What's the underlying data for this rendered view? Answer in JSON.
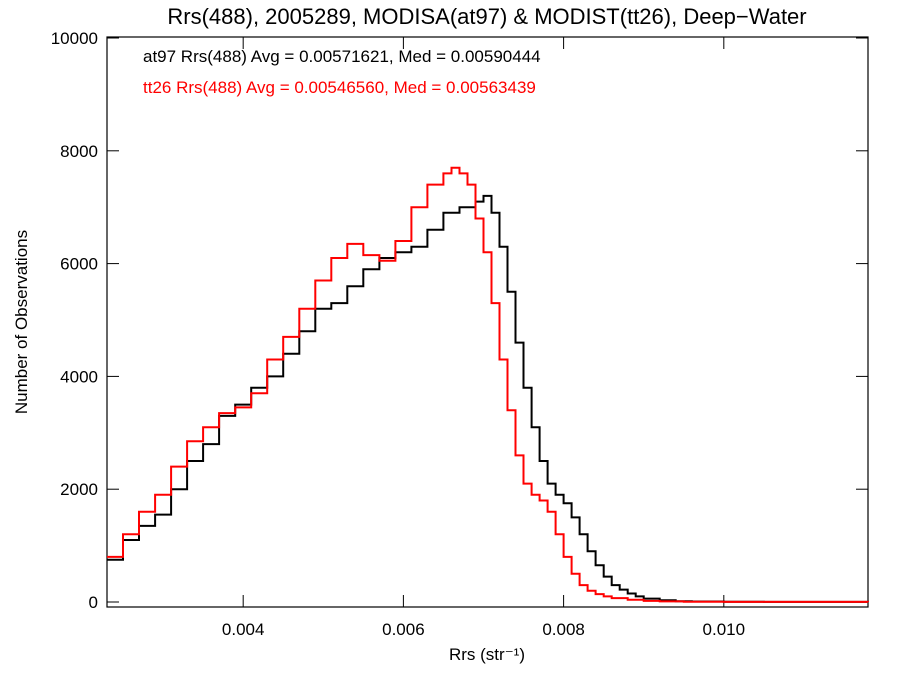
{
  "chart_data": {
    "type": "line",
    "title": "Rrs(488), 2005289, MODISA(at97) & MODIST(tt26), Deep−Water",
    "xlabel": "Rrs (str⁻¹)",
    "ylabel": "Number of Observations",
    "xlim": [
      0.0023,
      0.0118
    ],
    "ylim": [
      0,
      10000
    ],
    "xticks": [
      {
        "value": 0.004,
        "label": "0.004"
      },
      {
        "value": 0.006,
        "label": "0.006"
      },
      {
        "value": 0.008,
        "label": "0.008"
      },
      {
        "value": 0.01,
        "label": "0.010"
      }
    ],
    "yticks": [
      {
        "value": 0,
        "label": "0"
      },
      {
        "value": 2000,
        "label": "2000"
      },
      {
        "value": 4000,
        "label": "4000"
      },
      {
        "value": 6000,
        "label": "6000"
      },
      {
        "value": 8000,
        "label": "8000"
      },
      {
        "value": 10000,
        "label": "10000"
      }
    ],
    "grid": false,
    "annotations": [
      {
        "text": "at97 Rrs(488) Avg = 0.00571621, Med = 0.00590444",
        "color": "#000000"
      },
      {
        "text": "tt26 Rrs(488) Avg = 0.00546560, Med = 0.00563439",
        "color": "#ff0000"
      }
    ],
    "series": [
      {
        "color": "#000000",
        "step": true,
        "points": [
          [
            0.0023,
            750
          ],
          [
            0.0025,
            1100
          ],
          [
            0.0027,
            1350
          ],
          [
            0.0029,
            1550
          ],
          [
            0.0031,
            2000
          ],
          [
            0.0033,
            2500
          ],
          [
            0.0035,
            2800
          ],
          [
            0.0037,
            3300
          ],
          [
            0.0039,
            3500
          ],
          [
            0.0041,
            3800
          ],
          [
            0.0043,
            4000
          ],
          [
            0.0045,
            4400
          ],
          [
            0.0047,
            4800
          ],
          [
            0.0049,
            5200
          ],
          [
            0.0051,
            5300
          ],
          [
            0.0053,
            5600
          ],
          [
            0.0055,
            5900
          ],
          [
            0.0057,
            6100
          ],
          [
            0.0059,
            6200
          ],
          [
            0.0061,
            6300
          ],
          [
            0.0063,
            6600
          ],
          [
            0.0065,
            6900
          ],
          [
            0.0067,
            7000
          ],
          [
            0.0069,
            7100
          ],
          [
            0.007,
            7200
          ],
          [
            0.0071,
            6900
          ],
          [
            0.0072,
            6300
          ],
          [
            0.0073,
            5500
          ],
          [
            0.0074,
            4600
          ],
          [
            0.0075,
            3800
          ],
          [
            0.0076,
            3100
          ],
          [
            0.0077,
            2500
          ],
          [
            0.0078,
            2100
          ],
          [
            0.0079,
            1900
          ],
          [
            0.008,
            1750
          ],
          [
            0.0081,
            1500
          ],
          [
            0.0082,
            1200
          ],
          [
            0.0083,
            900
          ],
          [
            0.0084,
            650
          ],
          [
            0.0085,
            450
          ],
          [
            0.0086,
            300
          ],
          [
            0.0087,
            220
          ],
          [
            0.0088,
            150
          ],
          [
            0.0089,
            100
          ],
          [
            0.009,
            60
          ],
          [
            0.0092,
            30
          ],
          [
            0.0094,
            15
          ],
          [
            0.0096,
            8
          ],
          [
            0.01,
            4
          ],
          [
            0.0105,
            2
          ],
          [
            0.0118,
            0
          ]
        ]
      },
      {
        "color": "#ff0000",
        "step": true,
        "points": [
          [
            0.0023,
            800
          ],
          [
            0.0025,
            1200
          ],
          [
            0.0027,
            1600
          ],
          [
            0.0029,
            1900
          ],
          [
            0.0031,
            2400
          ],
          [
            0.0033,
            2850
          ],
          [
            0.0035,
            3100
          ],
          [
            0.0037,
            3350
          ],
          [
            0.0039,
            3450
          ],
          [
            0.0041,
            3700
          ],
          [
            0.0043,
            4300
          ],
          [
            0.0045,
            4700
          ],
          [
            0.0047,
            5200
          ],
          [
            0.0049,
            5700
          ],
          [
            0.0051,
            6100
          ],
          [
            0.0053,
            6350
          ],
          [
            0.0055,
            6150
          ],
          [
            0.0057,
            6050
          ],
          [
            0.0059,
            6400
          ],
          [
            0.0061,
            7000
          ],
          [
            0.0063,
            7400
          ],
          [
            0.0065,
            7600
          ],
          [
            0.0066,
            7700
          ],
          [
            0.0067,
            7600
          ],
          [
            0.0068,
            7400
          ],
          [
            0.0069,
            6800
          ],
          [
            0.007,
            6200
          ],
          [
            0.0071,
            5300
          ],
          [
            0.0072,
            4300
          ],
          [
            0.0073,
            3400
          ],
          [
            0.0074,
            2600
          ],
          [
            0.0075,
            2100
          ],
          [
            0.0076,
            1900
          ],
          [
            0.0077,
            1800
          ],
          [
            0.0078,
            1600
          ],
          [
            0.0079,
            1200
          ],
          [
            0.008,
            800
          ],
          [
            0.0081,
            500
          ],
          [
            0.0082,
            300
          ],
          [
            0.0083,
            200
          ],
          [
            0.0084,
            140
          ],
          [
            0.0085,
            100
          ],
          [
            0.0086,
            70
          ],
          [
            0.0088,
            40
          ],
          [
            0.009,
            20
          ],
          [
            0.0092,
            10
          ],
          [
            0.0095,
            5
          ],
          [
            0.01,
            2
          ],
          [
            0.0118,
            0
          ]
        ]
      }
    ]
  }
}
